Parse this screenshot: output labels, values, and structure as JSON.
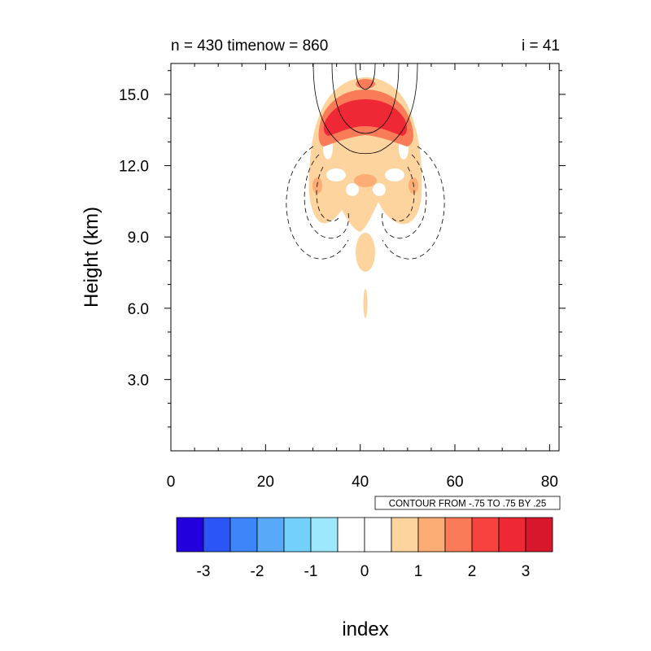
{
  "chart_data": {
    "type": "heatmap",
    "title_left": "n = 430 timenow = 860",
    "title_right": "i = 41",
    "xlabel": "index",
    "ylabel": "Height (km)",
    "xlim": [
      0,
      82
    ],
    "ylim": [
      0,
      16.3
    ],
    "x_ticks": [
      0,
      20,
      40,
      60,
      80
    ],
    "x_tick_labels": [
      "0",
      "20",
      "40",
      "60",
      "80"
    ],
    "y_ticks": [
      3,
      6,
      9,
      12,
      15
    ],
    "y_tick_labels": [
      "3.0",
      "6.0",
      "9.0",
      "12.0",
      "15.0"
    ],
    "contour_info": "CONTOUR FROM -.75 TO .75 BY .25",
    "colorbar": {
      "colors": [
        "#2200dd",
        "#2b55f5",
        "#3d85f8",
        "#58aaf8",
        "#72d0fa",
        "#9de8fd",
        "#ffffff",
        "#ffffff",
        "#fdd49d",
        "#fcad76",
        "#fa7b58",
        "#f7423f",
        "#ee2834",
        "#d8162c"
      ],
      "labels": [
        "-3",
        "-2",
        "-1",
        "0",
        "1",
        "2",
        "3"
      ]
    },
    "shaded_regions": [
      {
        "level": "1",
        "color": "#fdd49d",
        "x_range": [
          29.5,
          52.5
        ],
        "y_range": [
          7.8,
          15.3
        ]
      },
      {
        "level": "2",
        "color": "#fa7b58",
        "x_range": [
          31.5,
          50.5
        ],
        "y_range": [
          12.8,
          14.8
        ]
      },
      {
        "level": "3",
        "color": "#ee2834",
        "x_range": [
          33,
          49
        ],
        "y_range": [
          13.3,
          14.5
        ]
      }
    ],
    "contours": {
      "positive": "solid",
      "negative": "dashed"
    }
  }
}
